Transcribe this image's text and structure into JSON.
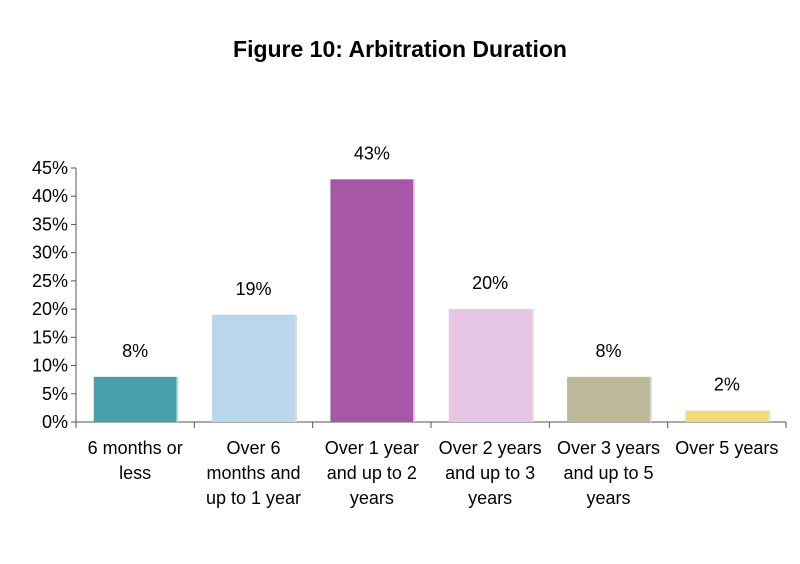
{
  "chart_data": {
    "type": "bar",
    "title": "Figure 10: Arbitration Duration",
    "xlabel": "",
    "ylabel": "",
    "categories": [
      [
        "6 months or",
        "less"
      ],
      [
        "Over 6",
        "months and",
        "up to 1 year"
      ],
      [
        "Over 1 year",
        "and up to 2",
        "years"
      ],
      [
        "Over 2 years",
        "and up to 3",
        "years"
      ],
      [
        "Over 3 years",
        "and up to 5",
        "years"
      ],
      [
        "Over 5 years"
      ]
    ],
    "values": [
      8,
      19,
      43,
      20,
      8,
      2
    ],
    "data_labels": [
      "8%",
      "19%",
      "43%",
      "20%",
      "8%",
      "2%"
    ],
    "colors": [
      "#4aa0aa",
      "#b8d7ed",
      "#a856a8",
      "#e6c6e4",
      "#bcb898",
      "#f2da7a"
    ],
    "ylim": [
      0,
      45
    ],
    "yticks": [
      0,
      5,
      10,
      15,
      20,
      25,
      30,
      35,
      40,
      45
    ],
    "ytick_labels": [
      "0%",
      "5%",
      "10%",
      "15%",
      "20%",
      "25%",
      "30%",
      "35%",
      "40%",
      "45%"
    ],
    "grid": false,
    "legend": "none"
  }
}
